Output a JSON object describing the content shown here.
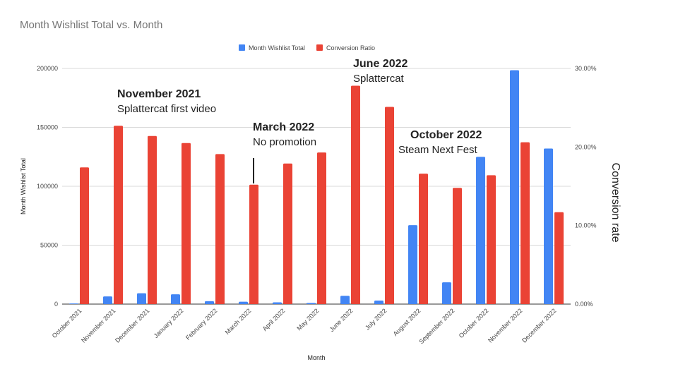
{
  "chart_data": {
    "type": "bar",
    "title": "Month Wishlist Total vs. Month",
    "xlabel": "Month",
    "ylabel": "Month Wishlist Total",
    "y2label": "Conversion rate",
    "categories": [
      "October 2021",
      "November 2021",
      "December 2021",
      "January 2022",
      "February 2022",
      "March 2022",
      "April 2022",
      "May 2022",
      "June 2022",
      "July 2022",
      "August 2022",
      "September 2022",
      "October 2022",
      "November 2022",
      "December 2022"
    ],
    "series": [
      {
        "name": "Month Wishlist Total",
        "axis": "left",
        "color": "#4285f4",
        "values": [
          500,
          6500,
          9200,
          8300,
          2500,
          2000,
          1500,
          1000,
          7000,
          3000,
          67000,
          18500,
          125000,
          198500,
          132000
        ]
      },
      {
        "name": "Conversion Ratio",
        "axis": "right",
        "color": "#ea4335",
        "values": [
          0.174,
          0.227,
          0.214,
          0.205,
          0.191,
          0.152,
          0.179,
          0.193,
          0.278,
          0.251,
          0.166,
          0.148,
          0.164,
          0.206,
          0.117
        ]
      }
    ],
    "ylim": [
      0,
      200000
    ],
    "y2lim": [
      0,
      0.3
    ],
    "yticks": [
      "0",
      "50000",
      "100000",
      "150000",
      "200000"
    ],
    "y2ticks": [
      "0.00%",
      "10.00%",
      "20.00%",
      "30.00%"
    ],
    "grid": true,
    "legend_position": "top",
    "annotations": [
      {
        "category": "November 2021",
        "title": "November 2021",
        "subtitle": "Splattercat first video"
      },
      {
        "category": "March 2022",
        "title": "March 2022",
        "subtitle": "No promotion"
      },
      {
        "category": "June 2022",
        "title": "June 2022",
        "subtitle": "Splattercat"
      },
      {
        "category": "October 2022",
        "title": "October 2022",
        "subtitle": "Steam Next Fest"
      }
    ]
  }
}
